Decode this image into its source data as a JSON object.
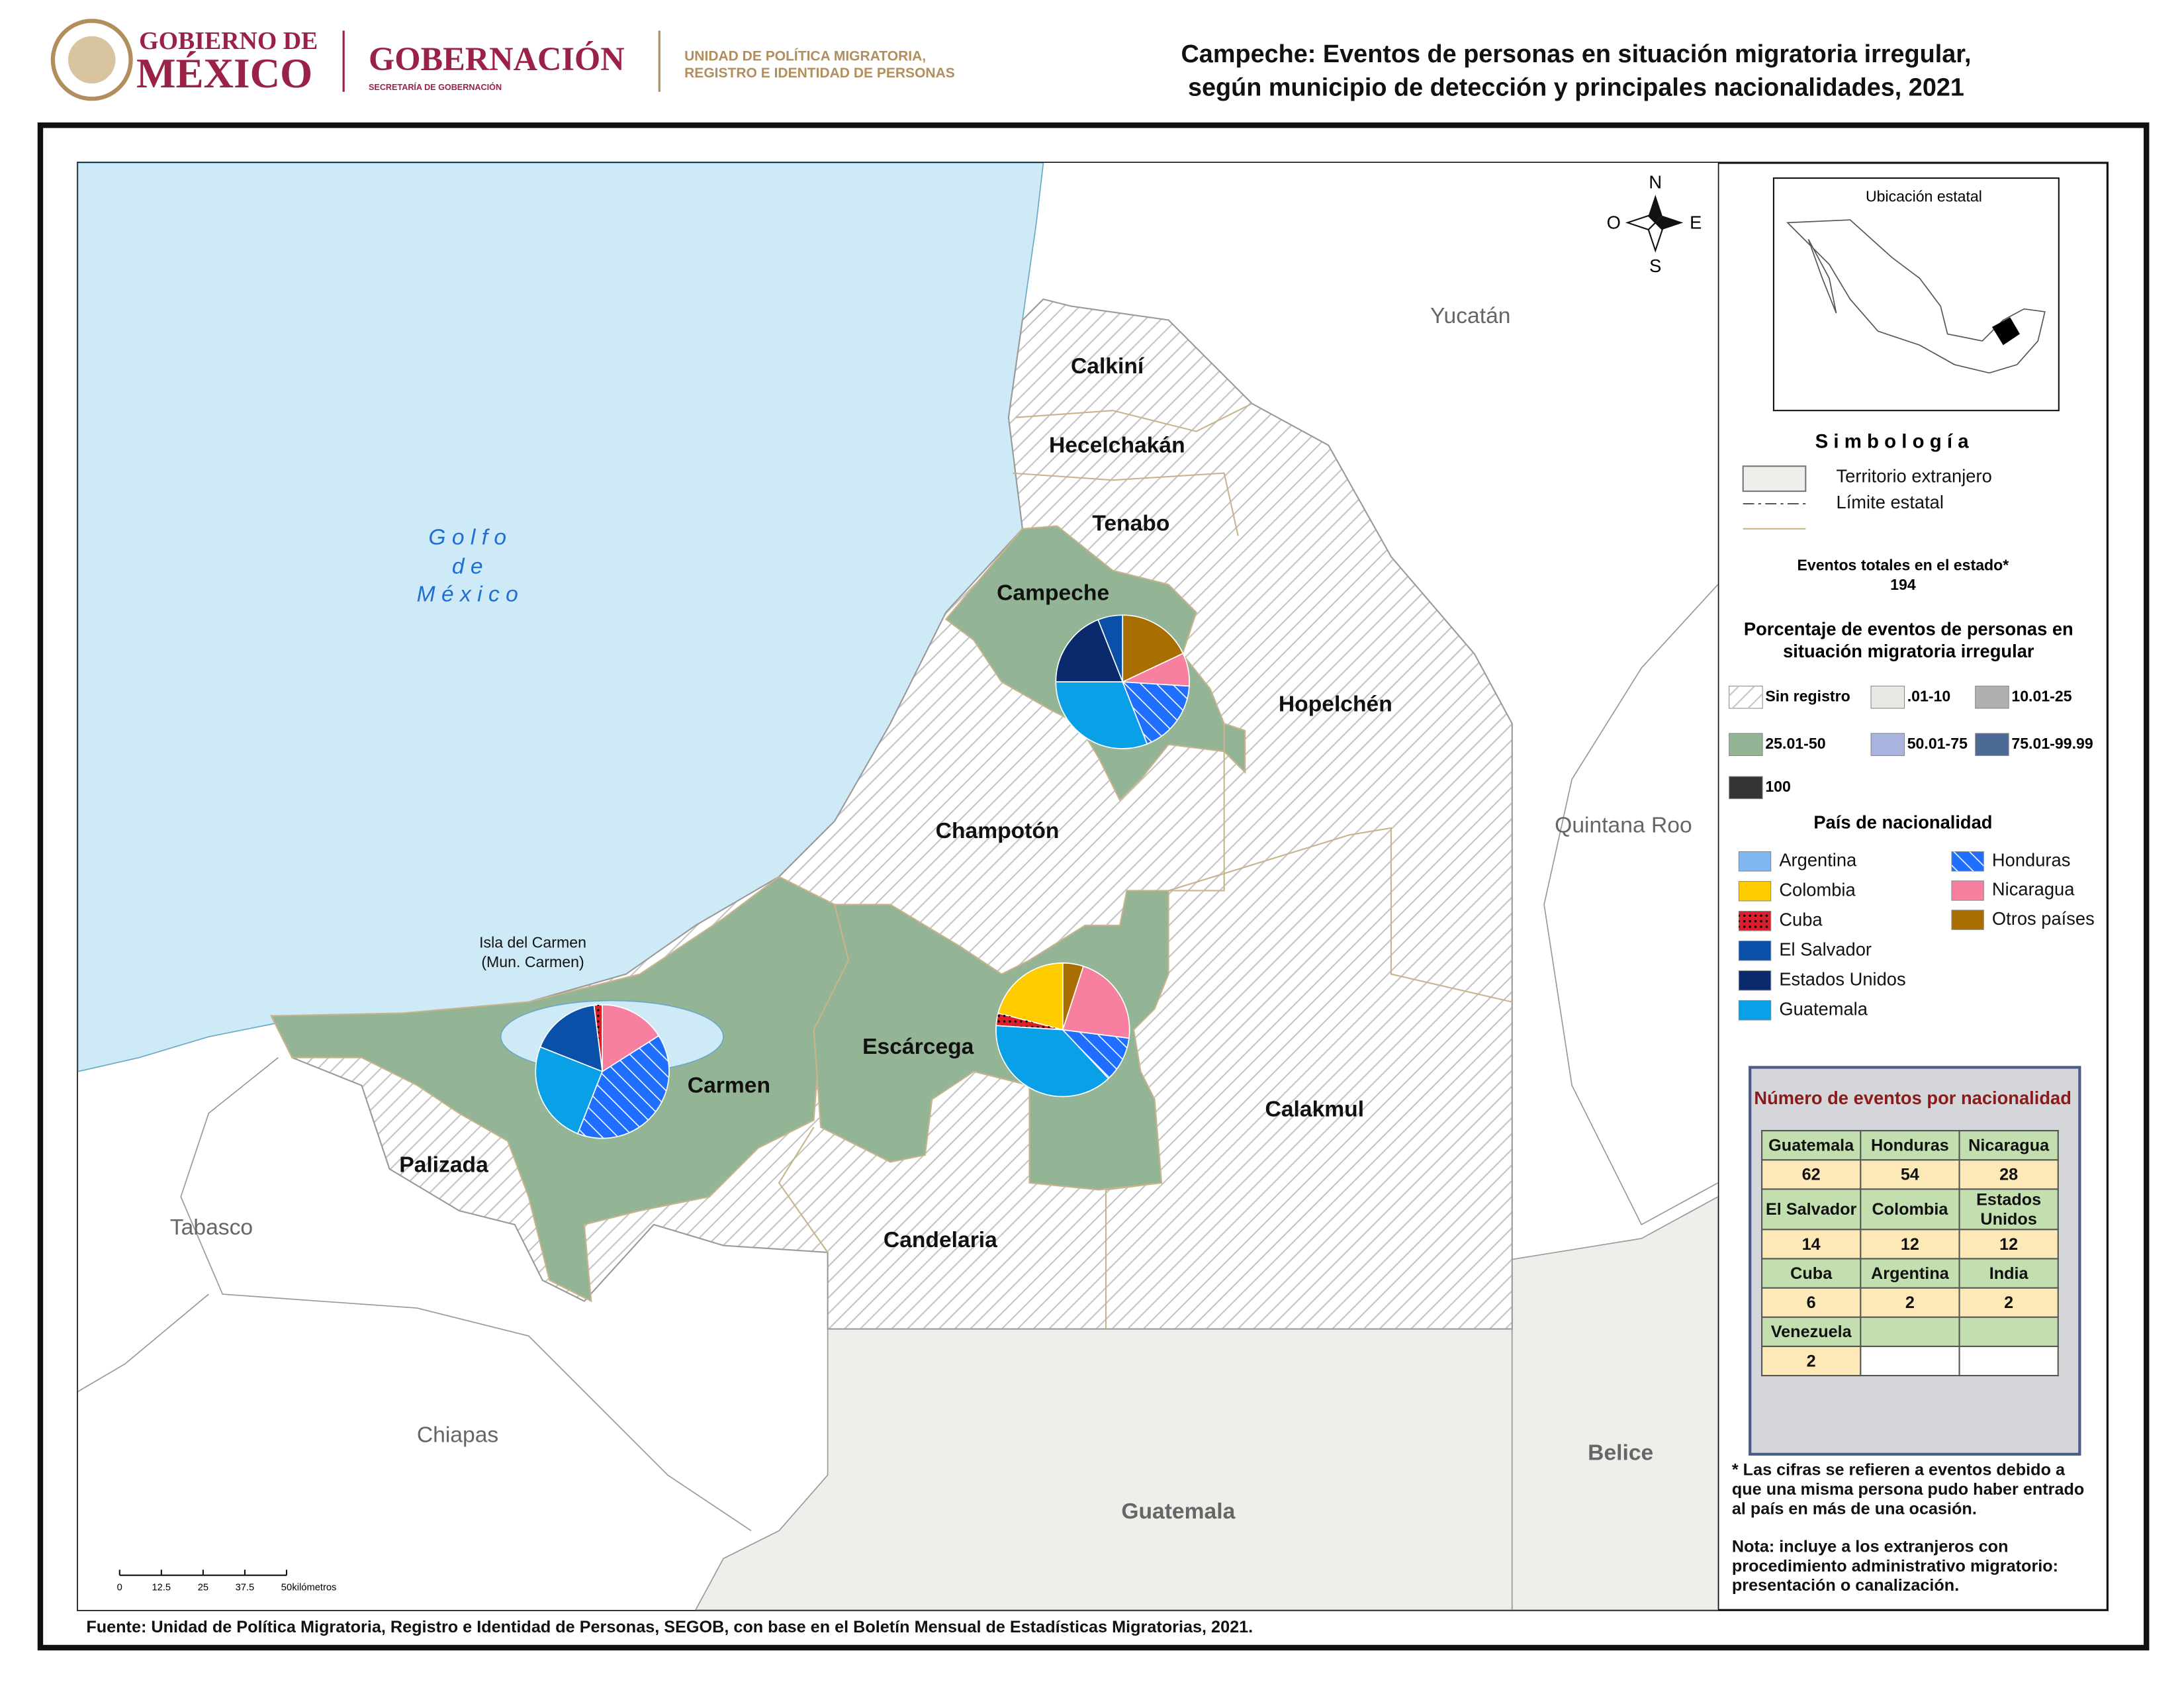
{
  "header": {
    "logo1": [
      "GOBIERNO DE",
      "MÉXICO"
    ],
    "logo2": "GOBERNACIÓN",
    "logo2_sub": "SECRETARÍA DE GOBERNACIÓN",
    "logo3": [
      "UNIDAD DE POLÍTICA MIGRATORIA,",
      "REGISTRO E IDENTIDAD DE PERSONAS"
    ]
  },
  "title": [
    "Campeche: Eventos de personas en situación migratoria irregular,",
    "según municipio de detección y principales nacionalidades, 2021"
  ],
  "map": {
    "sea": [
      "G o l f o",
      "d e",
      "M é x i c o"
    ],
    "municipalities": [
      "Calkiní",
      "Hecelchakán",
      "Tenabo",
      "Campeche",
      "Hopelchén",
      "Champotón",
      "Escárcega",
      "Carmen",
      "Palizada",
      "Candelaria",
      "Calakmul"
    ],
    "neighbors": [
      "Yucatán",
      "Quintana Roo",
      "Tabasco",
      "Chiapas"
    ],
    "countries": [
      "Belice",
      "Guatemala"
    ],
    "island": [
      "Isla del Carmen",
      "(Mun. Carmen)"
    ],
    "compass": {
      "north": "N",
      "south": "S",
      "east": "E",
      "west": "O"
    },
    "scale": {
      "ticks": [
        0,
        12.5,
        25,
        37.5,
        50
      ],
      "unit": "kilómetros"
    },
    "pies": [
      {
        "values": [
          0,
          0,
          0,
          6,
          19,
          31,
          18,
          8,
          18
        ]
      },
      {
        "values": [
          0,
          0,
          2,
          17,
          0,
          25,
          40,
          16,
          0
        ]
      },
      {
        "values": [
          0,
          21,
          3,
          0,
          0,
          38,
          11,
          22,
          5
        ]
      }
    ]
  },
  "inset": {
    "title": "Ubicación estatal"
  },
  "legend": {
    "title": "S i m b o l o g í a",
    "items": [
      "Territorio extranjero",
      "Límite estatal"
    ],
    "total_label": "Eventos totales en el estado*",
    "total": 194,
    "pct_title": [
      "Porcentaje de eventos de personas en",
      "situación migratoria irregular"
    ],
    "classes": [
      {
        "label": "Sin registro",
        "color": "#ffffff",
        "pattern": "hatch"
      },
      {
        "label": ".01-10",
        "color": "#e8e8e4"
      },
      {
        "label": "10.01-25",
        "color": "#b0b0b0"
      },
      {
        "label": "25.01-50",
        "color": "#93b596"
      },
      {
        "label": "50.01-75",
        "color": "#a9b4de"
      },
      {
        "label": "75.01-99.99",
        "color": "#4c6a93"
      },
      {
        "label": "100",
        "color": "#333333"
      }
    ],
    "nat_title": "País de nacionalidad",
    "nationalities": [
      {
        "name": "Argentina",
        "color": "#7fb8f0"
      },
      {
        "name": "Colombia",
        "color": "#ffcc00"
      },
      {
        "name": "Cuba",
        "color": "#d91f2a",
        "pattern": "dots"
      },
      {
        "name": "El Salvador",
        "color": "#0a4fa8"
      },
      {
        "name": "Estados Unidos",
        "color": "#0b2a6e"
      },
      {
        "name": "Guatemala",
        "color": "#0aa0e8"
      },
      {
        "name": "Honduras",
        "color": "#1e6fff",
        "pattern": "hatch"
      },
      {
        "name": "Nicaragua",
        "color": "#f77fa0"
      },
      {
        "name": "Otros países",
        "color": "#a86e00"
      }
    ]
  },
  "table": {
    "title": "Número de eventos por nacionalidad",
    "rows": [
      [
        "Guatemala",
        "Honduras",
        "Nicaragua"
      ],
      [
        62,
        54,
        28
      ],
      [
        "El Salvador",
        "Colombia",
        "Estados Unidos"
      ],
      [
        14,
        12,
        12
      ],
      [
        "Cuba",
        "Argentina",
        "India"
      ],
      [
        6,
        2,
        2
      ],
      [
        "Venezuela",
        null,
        null
      ],
      [
        2,
        null,
        null
      ]
    ]
  },
  "notes": [
    "* Las cifras se refieren a eventos debido a",
    "que una misma persona pudo haber entrado",
    "al país en más de una ocasión."
  ],
  "note2": [
    "Nota: incluye a los extranjeros con",
    "procedimiento administrativo migratorio:",
    "presentación o canalización."
  ],
  "source": "Fuente: Unidad de Política Migratoria, Registro e Identidad de Personas, SEGOB, con base en el Boletín Mensual de Estadísticas Migratorias, 2021."
}
